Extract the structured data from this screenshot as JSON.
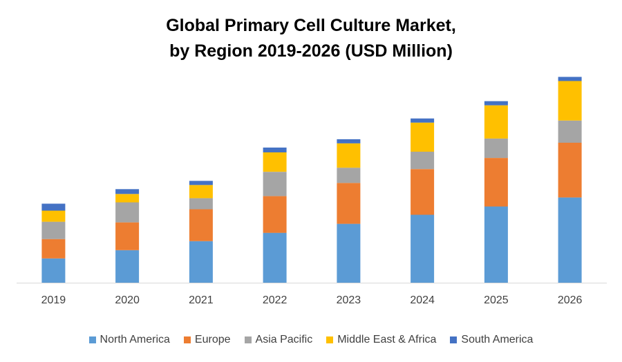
{
  "chart_data": {
    "type": "bar",
    "stacked": true,
    "title": [
      "Global Primary Cell Culture Market,",
      "by Region 2019-2026 (USD Million)"
    ],
    "categories": [
      "2019",
      "2020",
      "2021",
      "2022",
      "2023",
      "2024",
      "2025",
      "2026"
    ],
    "grid": false,
    "legend_position": "bottom",
    "series": [
      {
        "name": "North America",
        "color": "#5b9bd5",
        "values": [
          35,
          47,
          60,
          72,
          85,
          98,
          110,
          123
        ]
      },
      {
        "name": "Europe",
        "color": "#ed7d31",
        "values": [
          28,
          40,
          46,
          53,
          59,
          66,
          70,
          79
        ]
      },
      {
        "name": "Asia Pacific",
        "color": "#a5a5a5",
        "values": [
          25,
          29,
          16,
          35,
          22,
          25,
          28,
          32
        ]
      },
      {
        "name": "Middle East & Africa",
        "color": "#ffc000",
        "values": [
          16,
          12,
          19,
          28,
          35,
          42,
          48,
          57
        ]
      },
      {
        "name": "South America",
        "color": "#4472c4",
        "values": [
          10,
          7,
          6,
          7,
          6,
          6,
          6,
          6
        ]
      }
    ]
  }
}
